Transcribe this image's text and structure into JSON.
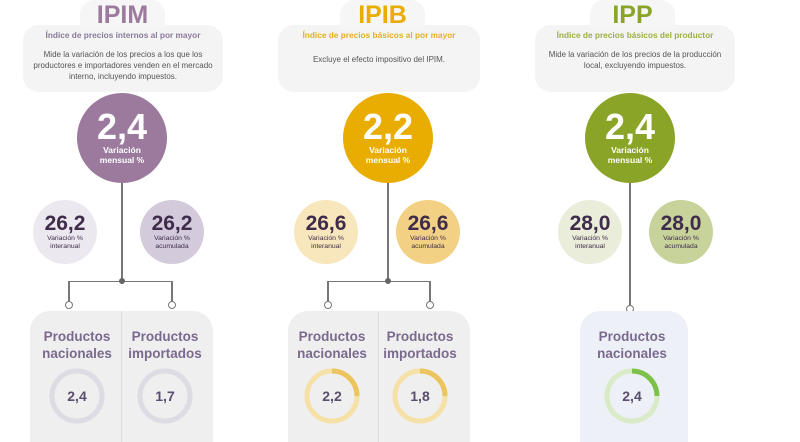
{
  "colors": {
    "ipim": "#9b7a9e",
    "ipib": "#e8ad00",
    "ipp": "#8aa428",
    "dark_text": "#3e2c4a"
  },
  "columns": [
    {
      "key": "ipim",
      "title": "IPIM",
      "subtitle": "Índice de precios internos al por mayor",
      "description": "Mide la variación de los precios a los que los productores e importadores venden en el mercado interno, incluyendo impuestos.",
      "monthly": {
        "value": "2,4",
        "label": "Variación mensual %"
      },
      "interanual": {
        "value": "26,2",
        "label": "Variación % interanual"
      },
      "acumulada": {
        "value": "26,2",
        "label": "Variación % acumulada"
      },
      "products": [
        {
          "label": "Productos nacionales",
          "value": "2,4"
        },
        {
          "label": "Productos importados",
          "value": "1,7"
        }
      ]
    },
    {
      "key": "ipib",
      "title": "IPIB",
      "subtitle": "Índice de precios básicos al por mayor",
      "description": "Excluye el efecto impositivo del IPIM.",
      "monthly": {
        "value": "2,2",
        "label": "Variación mensual %"
      },
      "interanual": {
        "value": "26,6",
        "label": "Variación % interanual"
      },
      "acumulada": {
        "value": "26,6",
        "label": "Variación % acumulada"
      },
      "products": [
        {
          "label": "Productos nacionales",
          "value": "2,2"
        },
        {
          "label": "Productos importados",
          "value": "1,8"
        }
      ]
    },
    {
      "key": "ipp",
      "title": "IPP",
      "subtitle": "Índice de precios básicos del productor",
      "description": "Mide la variación de los precios de la producción local, excluyendo impuestos.",
      "monthly": {
        "value": "2,4",
        "label": "Variación mensual %"
      },
      "interanual": {
        "value": "28,0",
        "label": "Variación % interanual"
      },
      "acumulada": {
        "value": "28,0",
        "label": "Variación % acumulada"
      },
      "products": [
        {
          "label": "Productos nacionales",
          "value": "2,4"
        }
      ]
    }
  ]
}
